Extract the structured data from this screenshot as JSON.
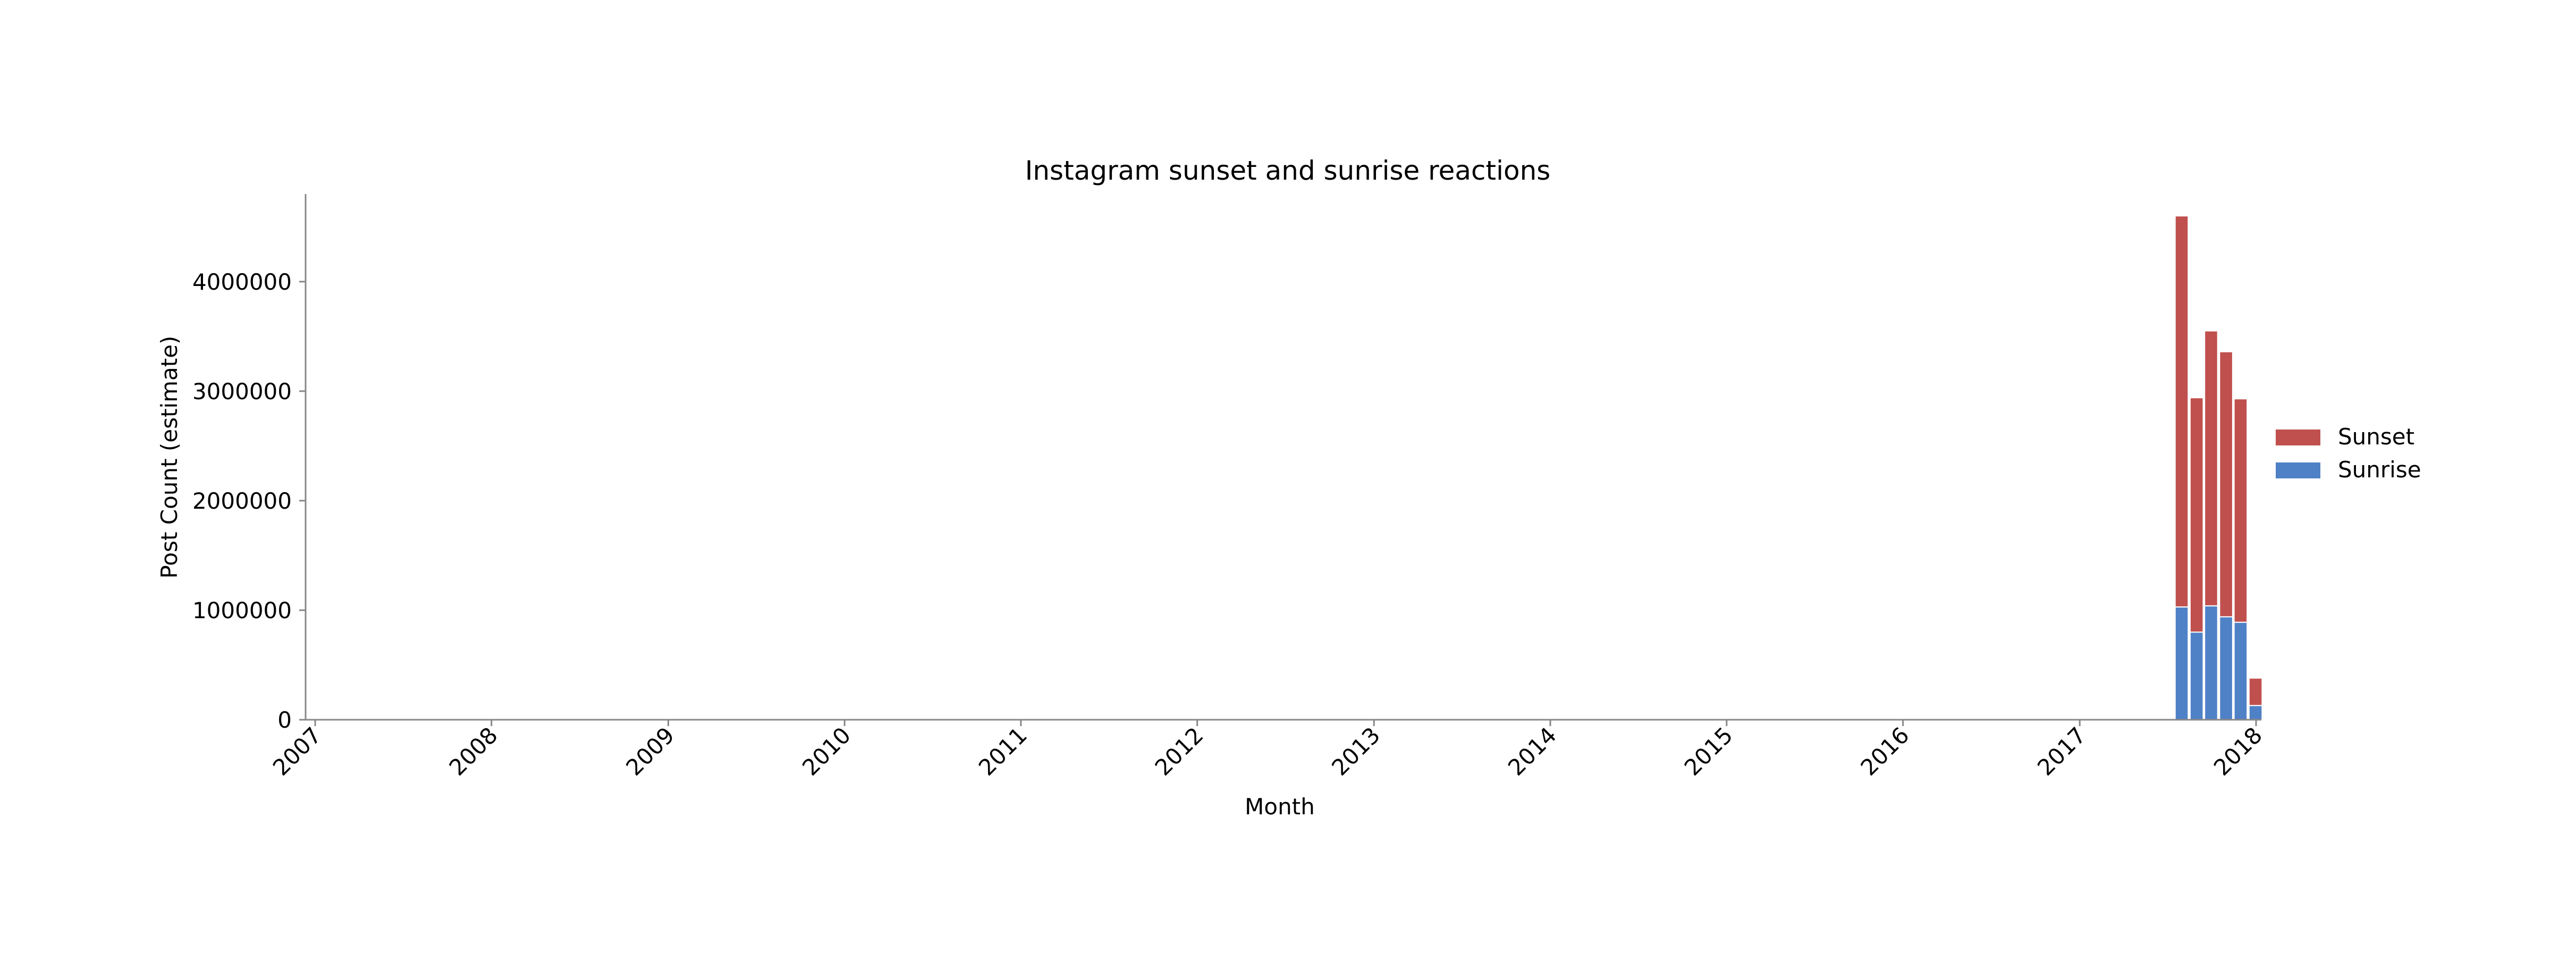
{
  "chart_data": {
    "type": "bar",
    "stacked": true,
    "title": "Instagram sunset and sunrise reactions",
    "xlabel": "Month",
    "ylabel": "Post Count (estimate)",
    "x_axis": {
      "type": "date",
      "range": [
        "2007-01-01",
        "2018-01-01"
      ],
      "tick_labels": [
        "2007",
        "2008",
        "2009",
        "2010",
        "2011",
        "2012",
        "2013",
        "2014",
        "2015",
        "2016",
        "2017",
        "2018"
      ],
      "tick_label_rotation_deg": 45
    },
    "y_axis": {
      "range": [
        0,
        4800000
      ],
      "ticks": [
        0,
        1000000,
        2000000,
        3000000,
        4000000
      ],
      "tick_labels": [
        "0",
        "1000000",
        "2000000",
        "3000000",
        "4000000"
      ]
    },
    "categories": [
      "2017-07-31",
      "2017-08-31",
      "2017-09-30",
      "2017-10-31",
      "2017-11-30",
      "2017-12-31"
    ],
    "series": [
      {
        "name": "Sunrise",
        "color": "#4f81c7",
        "values": [
          1030000,
          800000,
          1040000,
          940000,
          890000,
          130000
        ]
      },
      {
        "name": "Sunset",
        "color": "#c0504d",
        "values": [
          3570000,
          2140000,
          2510000,
          2420000,
          2040000,
          250000
        ]
      }
    ],
    "bar_width_days": 27,
    "legend": {
      "placement": "right",
      "entries": [
        "Sunset",
        "Sunrise"
      ]
    },
    "grid": false
  }
}
